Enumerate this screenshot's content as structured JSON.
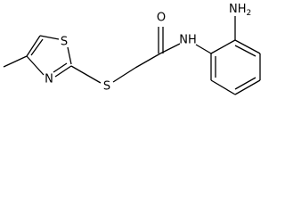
{
  "atoms": {
    "oxygen": "O",
    "amide_nitrogen": "NH",
    "amine_nitrogen": "NH",
    "amine_subscript": "2",
    "ring_sulfur": "S",
    "linker_sulfur": "S",
    "ring_nitrogen": "N"
  }
}
